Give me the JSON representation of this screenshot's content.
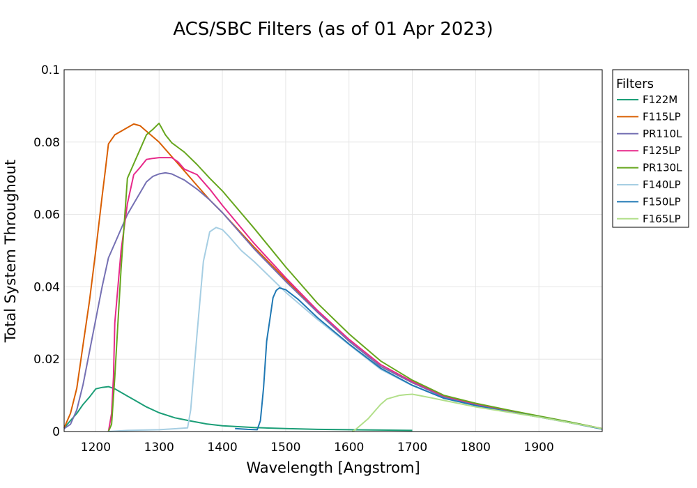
{
  "chart_data": {
    "type": "line",
    "title": "ACS/SBC Filters (as of 01 Apr 2023)",
    "xlabel": "Wavelength [Angstrom]",
    "ylabel": "Total System Throughout",
    "xlim": [
      1150,
      2000
    ],
    "ylim": [
      0,
      0.1
    ],
    "xticks": [
      1200,
      1300,
      1400,
      1500,
      1600,
      1700,
      1800,
      1900
    ],
    "yticks": [
      0,
      0.02,
      0.04,
      0.06,
      0.08,
      0.1
    ],
    "ytick_labels": [
      "0",
      "0.02",
      "0.04",
      "0.06",
      "0.08",
      "0.1"
    ],
    "grid": true,
    "legend": {
      "title": "Filters",
      "placement": "right-top"
    },
    "series": [
      {
        "name": "F122M",
        "color": "#1b9e77",
        "x": [
          1150,
          1160,
          1170,
          1180,
          1190,
          1200,
          1210,
          1220,
          1230,
          1240,
          1250,
          1260,
          1270,
          1280,
          1300,
          1325,
          1350,
          1375,
          1400,
          1450,
          1500,
          1550,
          1600,
          1650,
          1700
        ],
        "y": [
          0.001,
          0.003,
          0.005,
          0.0075,
          0.0095,
          0.0118,
          0.0122,
          0.0124,
          0.0118,
          0.0108,
          0.0098,
          0.0088,
          0.0078,
          0.0068,
          0.0052,
          0.0038,
          0.0029,
          0.0021,
          0.0016,
          0.0011,
          0.0008,
          0.0006,
          0.0005,
          0.0004,
          0.0003
        ]
      },
      {
        "name": "F115LP",
        "color": "#d95f02",
        "x": [
          1150,
          1160,
          1170,
          1180,
          1190,
          1200,
          1210,
          1215,
          1220,
          1230,
          1240,
          1250,
          1260,
          1270,
          1280,
          1300,
          1320,
          1340,
          1360,
          1380,
          1400,
          1450,
          1500,
          1550,
          1600,
          1650,
          1700,
          1750,
          1800,
          1850,
          1900,
          1950,
          2000
        ],
        "y": [
          0.001,
          0.005,
          0.012,
          0.024,
          0.036,
          0.05,
          0.065,
          0.072,
          0.0795,
          0.082,
          0.083,
          0.084,
          0.085,
          0.0845,
          0.083,
          0.08,
          0.076,
          0.072,
          0.068,
          0.064,
          0.0605,
          0.051,
          0.042,
          0.033,
          0.025,
          0.018,
          0.0135,
          0.0098,
          0.0076,
          0.0058,
          0.0042,
          0.0025,
          0.0008
        ]
      },
      {
        "name": "PR110L",
        "color": "#7570b3",
        "x": [
          1150,
          1160,
          1170,
          1180,
          1190,
          1200,
          1210,
          1220,
          1230,
          1240,
          1250,
          1260,
          1270,
          1280,
          1290,
          1300,
          1310,
          1320,
          1340,
          1360,
          1380,
          1400,
          1450,
          1500,
          1550,
          1600,
          1650,
          1700,
          1750,
          1800,
          1850,
          1900,
          1950,
          2000
        ],
        "y": [
          0.0008,
          0.002,
          0.006,
          0.013,
          0.022,
          0.031,
          0.04,
          0.048,
          0.052,
          0.056,
          0.06,
          0.063,
          0.066,
          0.069,
          0.0705,
          0.0712,
          0.0715,
          0.0712,
          0.0695,
          0.067,
          0.064,
          0.0605,
          0.0505,
          0.0415,
          0.033,
          0.025,
          0.018,
          0.0135,
          0.0095,
          0.0075,
          0.0056,
          0.004,
          0.0024,
          0.0007
        ]
      },
      {
        "name": "F125LP",
        "color": "#e7298a",
        "x": [
          1220,
          1225,
          1228,
          1230,
          1240,
          1250,
          1260,
          1270,
          1280,
          1290,
          1300,
          1320,
          1330,
          1340,
          1360,
          1380,
          1400,
          1450,
          1500,
          1550,
          1600,
          1650,
          1700,
          1750,
          1800,
          1850,
          1900,
          1950,
          2000
        ],
        "y": [
          0.0,
          0.005,
          0.015,
          0.03,
          0.05,
          0.063,
          0.071,
          0.073,
          0.0752,
          0.0755,
          0.0757,
          0.0757,
          0.0745,
          0.0725,
          0.071,
          0.067,
          0.0625,
          0.052,
          0.0425,
          0.0335,
          0.0255,
          0.0185,
          0.0138,
          0.0098,
          0.0076,
          0.0058,
          0.0042,
          0.0025,
          0.0008
        ]
      },
      {
        "name": "PR130L",
        "color": "#66a61e",
        "x": [
          1220,
          1225,
          1230,
          1240,
          1250,
          1260,
          1270,
          1280,
          1290,
          1300,
          1310,
          1320,
          1340,
          1360,
          1380,
          1400,
          1450,
          1500,
          1550,
          1600,
          1650,
          1700,
          1750,
          1800,
          1850,
          1900,
          1950,
          2000
        ],
        "y": [
          0.0,
          0.002,
          0.015,
          0.045,
          0.07,
          0.074,
          0.078,
          0.082,
          0.0835,
          0.0852,
          0.082,
          0.0798,
          0.0772,
          0.0738,
          0.07,
          0.0665,
          0.0562,
          0.0455,
          0.0355,
          0.027,
          0.0195,
          0.0142,
          0.01,
          0.0078,
          0.006,
          0.0043,
          0.0026,
          0.0008
        ]
      },
      {
        "name": "F140LP",
        "color": "#a6cee3",
        "x": [
          1220,
          1250,
          1300,
          1345,
          1350,
          1360,
          1370,
          1380,
          1390,
          1400,
          1410,
          1420,
          1430,
          1450,
          1500,
          1550,
          1600,
          1650,
          1700,
          1750,
          1800,
          1850,
          1900,
          1950,
          2000
        ],
        "y": [
          0.0,
          0.0003,
          0.0005,
          0.001,
          0.006,
          0.027,
          0.047,
          0.0552,
          0.0564,
          0.0558,
          0.054,
          0.052,
          0.05,
          0.047,
          0.0385,
          0.031,
          0.024,
          0.0172,
          0.0127,
          0.0092,
          0.0072,
          0.0055,
          0.004,
          0.0024,
          0.0007
        ]
      },
      {
        "name": "F150LP",
        "color": "#1f78b4",
        "x": [
          1420,
          1440,
          1455,
          1460,
          1465,
          1470,
          1475,
          1480,
          1485,
          1490,
          1500,
          1520,
          1550,
          1600,
          1650,
          1700,
          1750,
          1800,
          1850,
          1900,
          1950,
          2000
        ],
        "y": [
          0.0008,
          0.0006,
          0.0005,
          0.003,
          0.012,
          0.025,
          0.031,
          0.037,
          0.039,
          0.0397,
          0.0392,
          0.0365,
          0.0315,
          0.0242,
          0.0175,
          0.0128,
          0.0092,
          0.0072,
          0.0055,
          0.004,
          0.0024,
          0.0007
        ]
      },
      {
        "name": "F165LP",
        "color": "#b2df8a",
        "x": [
          1605,
          1610,
          1620,
          1630,
          1640,
          1650,
          1660,
          1670,
          1680,
          1690,
          1700,
          1710,
          1730,
          1750,
          1800,
          1850,
          1900,
          1950,
          2000
        ],
        "y": [
          0.0,
          0.0005,
          0.002,
          0.0035,
          0.0055,
          0.0075,
          0.009,
          0.0095,
          0.01,
          0.0102,
          0.0103,
          0.01,
          0.0093,
          0.0086,
          0.0068,
          0.0054,
          0.004,
          0.0024,
          0.0008
        ]
      }
    ]
  }
}
